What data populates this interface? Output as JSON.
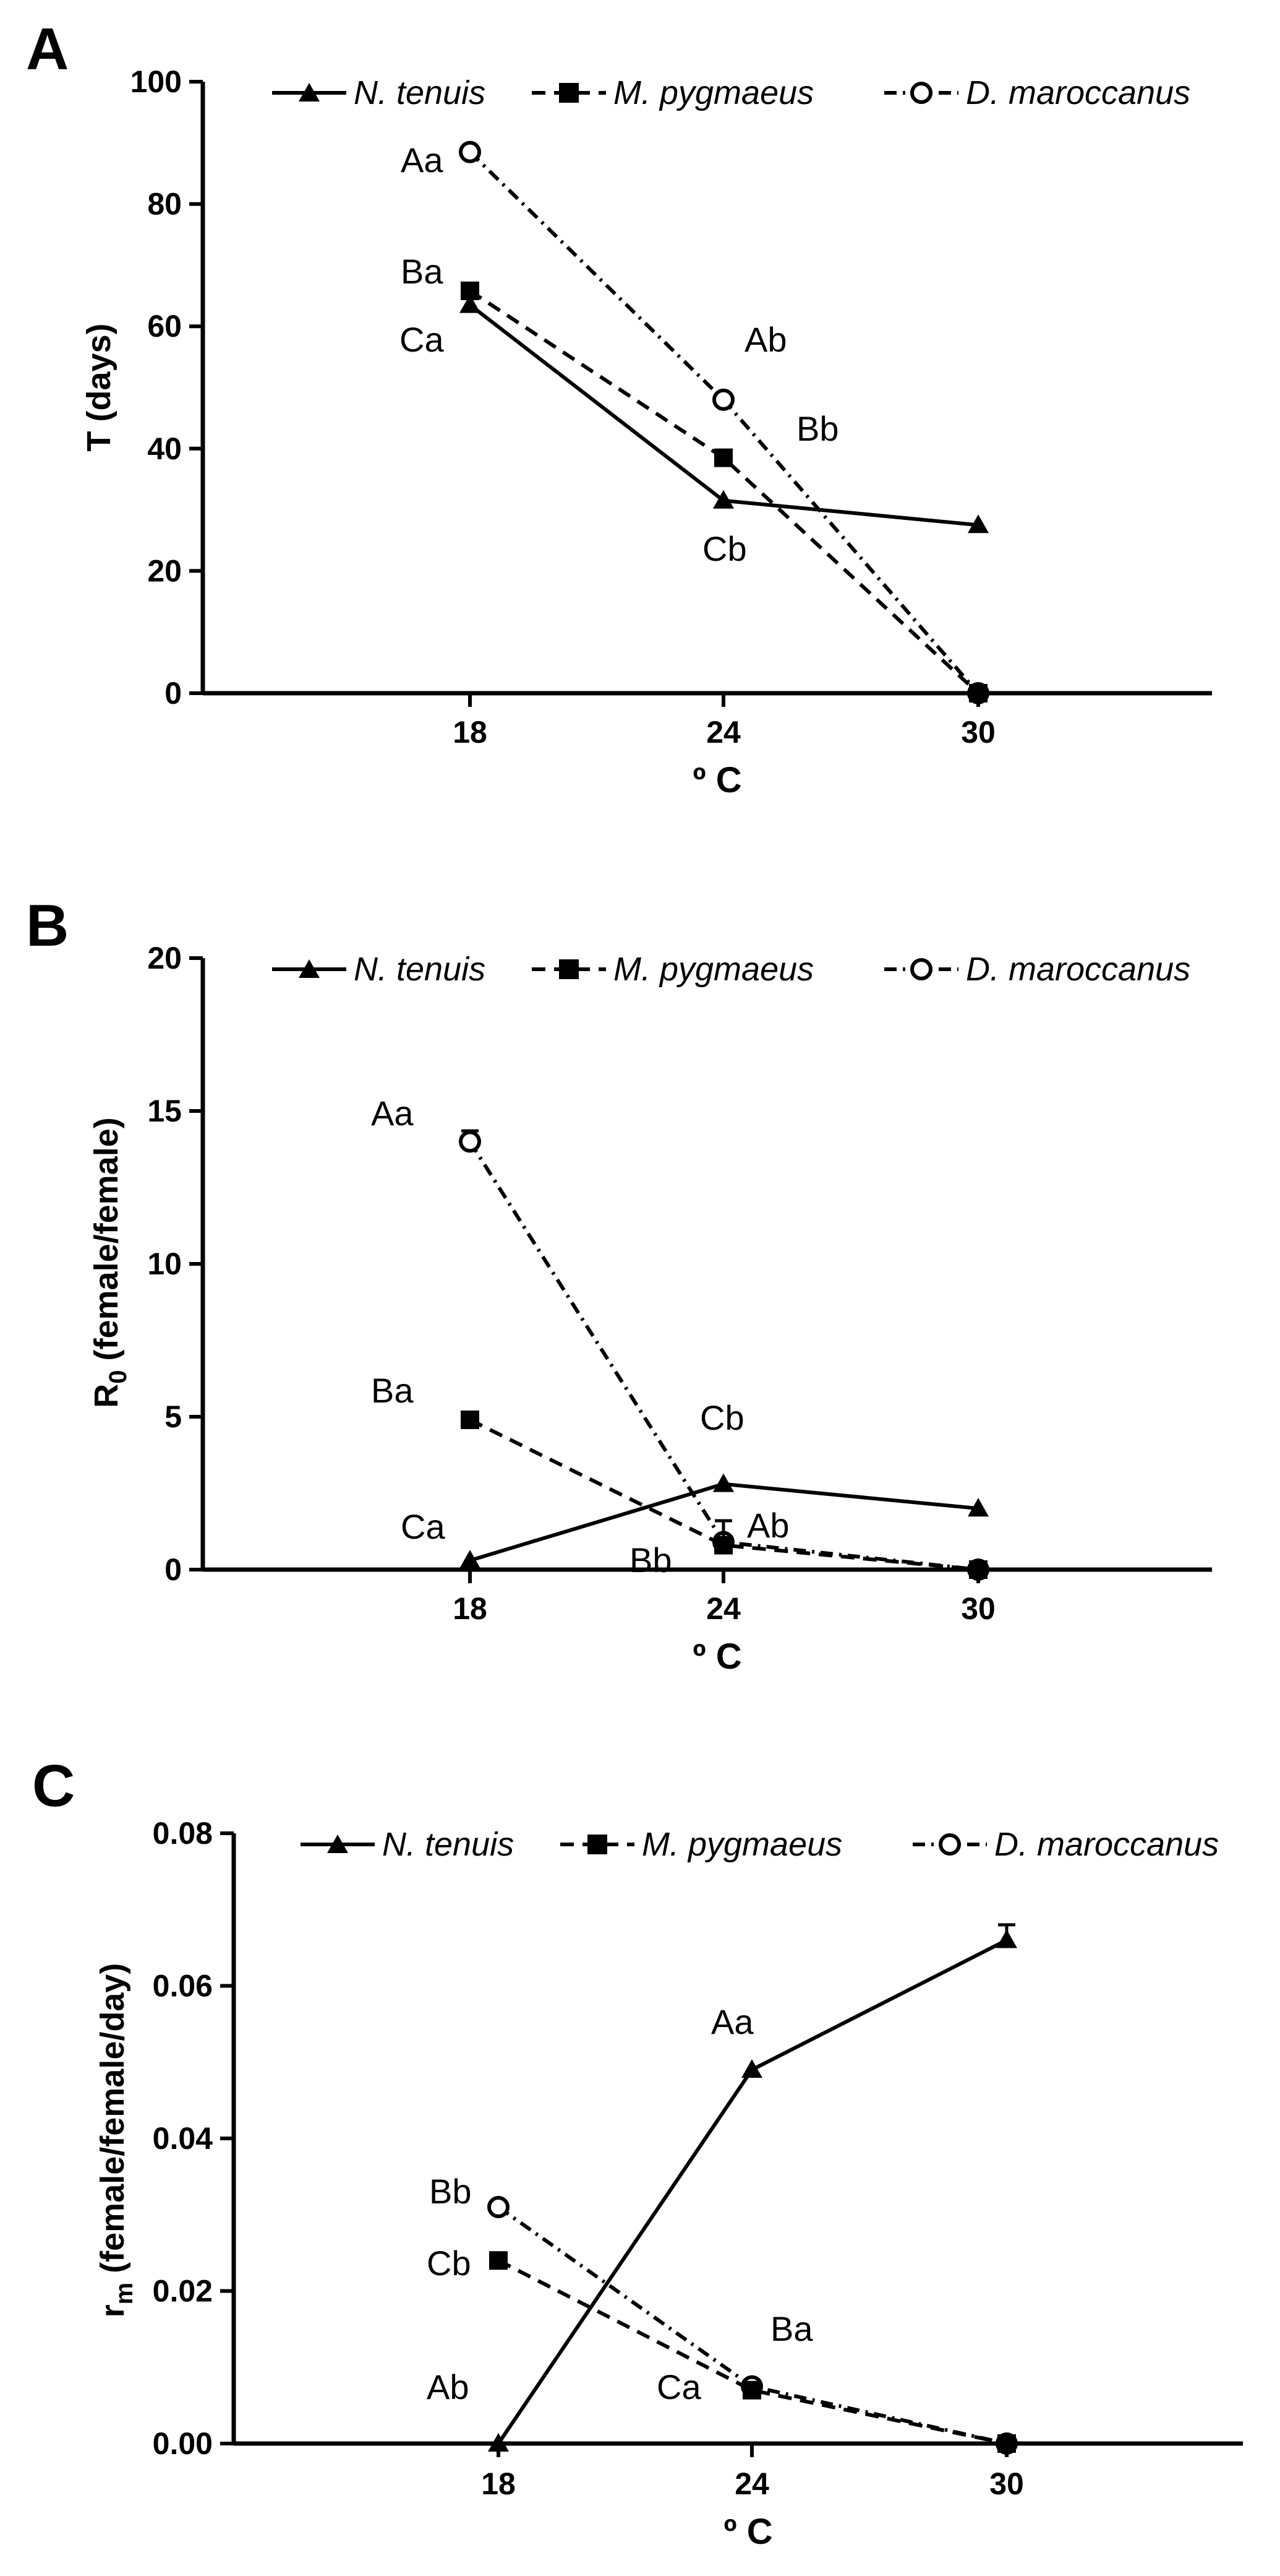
{
  "chart_data": [
    {
      "type": "line",
      "panel_label": "A",
      "xlabel": "º C",
      "ylabel": "T (days)",
      "categories": [
        "18",
        "24",
        "30"
      ],
      "ylim": [
        0,
        100
      ],
      "yticks": [
        "0",
        "20",
        "40",
        "60",
        "80",
        "100"
      ],
      "series": [
        {
          "name": "N. tenuis",
          "values": [
            63.5,
            31.5,
            27.5
          ]
        },
        {
          "name": "M. pygmaeus",
          "values": [
            65.8,
            38.5,
            0
          ]
        },
        {
          "name": "D. maroccanus",
          "values": [
            88.5,
            48.0,
            0
          ]
        }
      ],
      "annotations": [
        "Aa",
        "Ba",
        "Ca",
        "Ab",
        "Bb",
        "Cb"
      ]
    },
    {
      "type": "line",
      "panel_label": "B",
      "xlabel": "º C",
      "ylabel": "R0 (female/female)",
      "categories": [
        "18",
        "24",
        "30"
      ],
      "ylim": [
        0,
        20
      ],
      "yticks": [
        "0",
        "5",
        "10",
        "15",
        "20"
      ],
      "series": [
        {
          "name": "N. tenuis",
          "values": [
            0.3,
            2.8,
            2.0
          ]
        },
        {
          "name": "M. pygmaeus",
          "values": [
            4.9,
            0.8,
            0
          ]
        },
        {
          "name": "D. maroccanus",
          "values": [
            14.0,
            0.9,
            0
          ]
        }
      ],
      "annotations": [
        "Aa",
        "Ba",
        "Ca",
        "Cb",
        "Ab",
        "Bb"
      ]
    },
    {
      "type": "line",
      "panel_label": "C",
      "xlabel": "º C",
      "ylabel": "rm (female/female/day)",
      "categories": [
        "18",
        "24",
        "30"
      ],
      "ylim": [
        0,
        0.08
      ],
      "yticks": [
        "0.00",
        "0.02",
        "0.04",
        "0.06",
        "0.08"
      ],
      "series": [
        {
          "name": "N. tenuis",
          "values": [
            0.0,
            0.049,
            0.066
          ]
        },
        {
          "name": "M. pygmaeus",
          "values": [
            0.024,
            0.007,
            0
          ]
        },
        {
          "name": "D. maroccanus",
          "values": [
            0.031,
            0.0075,
            0
          ]
        }
      ],
      "annotations": [
        "Aa",
        "Ba",
        "Bb",
        "Cb",
        "Ab",
        "Ca"
      ]
    }
  ],
  "legend": [
    "N. tenuis",
    "M. pygmaeus",
    "D. maroccanus"
  ],
  "labels": {
    "ylabel_b_main": "R",
    "ylabel_b_sub": "0",
    "ylabel_b_rest": " (female/female)",
    "ylabel_c_main": "r",
    "ylabel_c_sub": "m",
    "ylabel_c_rest": " (female/female/day)"
  }
}
